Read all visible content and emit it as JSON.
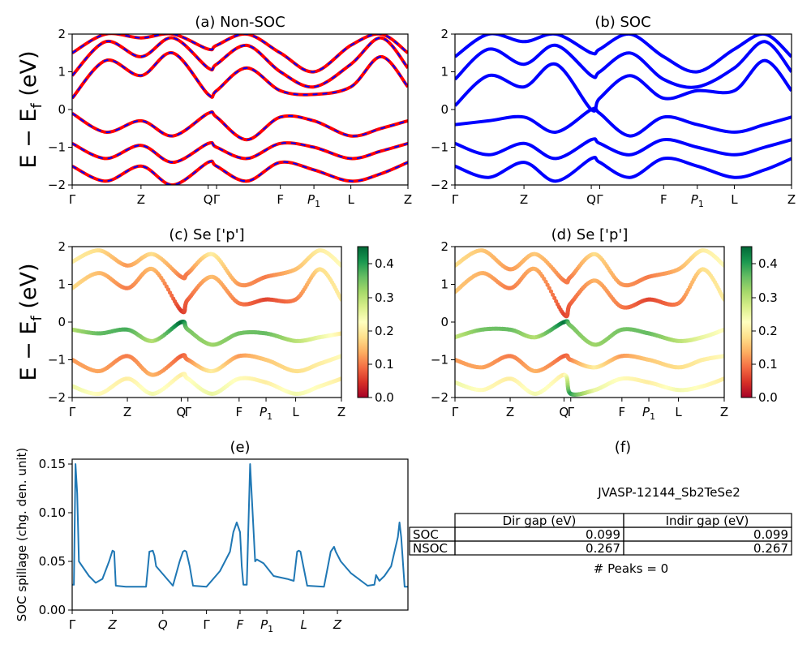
{
  "colors": {
    "nonsoc_line": "#ff0000",
    "soc_line": "#0000ff",
    "nonsoc_dash": "#0000ff",
    "spillage_line": "#1f77b4",
    "colormap": [
      "#a50026",
      "#d73027",
      "#f46d43",
      "#fdae61",
      "#fee08b",
      "#ffffbf",
      "#d9ef8b",
      "#a6d96a",
      "#66bd63",
      "#1a9850",
      "#006837"
    ]
  },
  "chart_data": [
    {
      "id": "a",
      "type": "line",
      "title": "(a) Non-SOC",
      "ylabel": "E − E_f (eV)",
      "ylim": [
        -2,
        2
      ],
      "yticks": [
        "2",
        "1",
        "0",
        "−1",
        "−2"
      ],
      "xticks": [
        "Γ",
        "Z",
        "Q",
        "Γ",
        "F",
        "P1",
        "L",
        "Z"
      ],
      "xtick_positions": [
        0,
        0.205,
        0.405,
        0.43,
        0.62,
        0.72,
        0.83,
        1.0
      ],
      "style": "red lines overlaid with blue dashes",
      "series": [
        {
          "x": [
            0,
            0.1,
            0.205,
            0.3,
            0.405,
            0.43,
            0.52,
            0.62,
            0.72,
            0.83,
            0.92,
            1.0
          ],
          "values": [
            0.3,
            1.3,
            0.9,
            1.5,
            0.4,
            0.5,
            1.1,
            0.5,
            0.4,
            0.6,
            1.4,
            0.6
          ]
        },
        {
          "x": [
            0,
            0.1,
            0.205,
            0.3,
            0.405,
            0.43,
            0.52,
            0.62,
            0.72,
            0.83,
            0.92,
            1.0
          ],
          "values": [
            0.9,
            1.8,
            1.4,
            1.9,
            1.1,
            1.2,
            1.7,
            1.0,
            0.6,
            1.2,
            1.9,
            1.1
          ]
        },
        {
          "x": [
            0,
            0.1,
            0.205,
            0.3,
            0.405,
            0.43,
            0.52,
            0.62,
            0.72,
            0.83,
            0.92,
            1.0
          ],
          "values": [
            1.5,
            2.0,
            1.9,
            2.0,
            1.6,
            1.7,
            2.0,
            1.5,
            1.0,
            1.7,
            2.0,
            1.5
          ]
        },
        {
          "x": [
            0,
            0.1,
            0.205,
            0.3,
            0.405,
            0.43,
            0.52,
            0.62,
            0.72,
            0.83,
            0.92,
            1.0
          ],
          "values": [
            -0.1,
            -0.6,
            -0.3,
            -0.7,
            -0.1,
            -0.2,
            -0.8,
            -0.2,
            -0.3,
            -0.7,
            -0.5,
            -0.3
          ]
        },
        {
          "x": [
            0,
            0.1,
            0.205,
            0.3,
            0.405,
            0.43,
            0.52,
            0.62,
            0.72,
            0.83,
            0.92,
            1.0
          ],
          "values": [
            -0.9,
            -1.3,
            -0.95,
            -1.4,
            -0.9,
            -1.0,
            -1.3,
            -0.9,
            -1.0,
            -1.3,
            -1.1,
            -0.9
          ]
        },
        {
          "x": [
            0,
            0.1,
            0.205,
            0.3,
            0.405,
            0.43,
            0.52,
            0.62,
            0.72,
            0.83,
            0.92,
            1.0
          ],
          "values": [
            -1.5,
            -1.9,
            -1.5,
            -2.0,
            -1.4,
            -1.5,
            -1.9,
            -1.4,
            -1.6,
            -1.9,
            -1.7,
            -1.4
          ]
        }
      ]
    },
    {
      "id": "b",
      "type": "line",
      "title": "(b) SOC",
      "ylim": [
        -2,
        2
      ],
      "yticks": [
        "2",
        "1",
        "0",
        "−1",
        "−2"
      ],
      "xticks": [
        "Γ",
        "Z",
        "Q",
        "Γ",
        "F",
        "P1",
        "L",
        "Z"
      ],
      "xtick_positions": [
        0,
        0.205,
        0.405,
        0.43,
        0.62,
        0.72,
        0.83,
        1.0
      ],
      "series": [
        {
          "x": [
            0,
            0.1,
            0.205,
            0.3,
            0.405,
            0.43,
            0.52,
            0.62,
            0.72,
            0.83,
            0.92,
            1.0
          ],
          "values": [
            0.1,
            0.9,
            0.6,
            1.2,
            0.0,
            0.3,
            0.9,
            0.3,
            0.5,
            0.5,
            1.3,
            0.5
          ]
        },
        {
          "x": [
            0,
            0.1,
            0.205,
            0.3,
            0.405,
            0.43,
            0.52,
            0.62,
            0.72,
            0.83,
            0.92,
            1.0
          ],
          "values": [
            0.8,
            1.6,
            1.2,
            1.7,
            0.9,
            1.0,
            1.5,
            0.8,
            0.6,
            1.1,
            1.8,
            1.0
          ]
        },
        {
          "x": [
            0,
            0.1,
            0.205,
            0.3,
            0.405,
            0.43,
            0.52,
            0.62,
            0.72,
            0.83,
            0.92,
            1.0
          ],
          "values": [
            1.4,
            2.0,
            1.8,
            2.0,
            1.5,
            1.6,
            2.0,
            1.4,
            1.0,
            1.6,
            2.0,
            1.4
          ]
        },
        {
          "x": [
            0,
            0.1,
            0.205,
            0.3,
            0.405,
            0.43,
            0.52,
            0.62,
            0.72,
            0.83,
            0.92,
            1.0
          ],
          "values": [
            -0.4,
            -0.3,
            -0.2,
            -0.6,
            0.0,
            -0.1,
            -0.7,
            -0.2,
            -0.4,
            -0.6,
            -0.4,
            -0.2
          ]
        },
        {
          "x": [
            0,
            0.1,
            0.205,
            0.3,
            0.405,
            0.43,
            0.52,
            0.62,
            0.72,
            0.83,
            0.92,
            1.0
          ],
          "values": [
            -0.9,
            -1.2,
            -0.9,
            -1.3,
            -0.8,
            -0.9,
            -1.2,
            -0.8,
            -1.0,
            -1.2,
            -1.0,
            -0.8
          ]
        },
        {
          "x": [
            0,
            0.1,
            0.205,
            0.3,
            0.405,
            0.43,
            0.52,
            0.62,
            0.72,
            0.83,
            0.92,
            1.0
          ],
          "values": [
            -1.5,
            -1.8,
            -1.4,
            -1.9,
            -1.3,
            -1.4,
            -1.8,
            -1.3,
            -1.5,
            -1.8,
            -1.6,
            -1.3
          ]
        }
      ]
    },
    {
      "id": "c",
      "type": "scatter",
      "title": "(c)  Se ['p']",
      "ylabel": "E − E_f (eV)",
      "ylim": [
        -2,
        2
      ],
      "yticks": [
        "2",
        "1",
        "0",
        "−1",
        "−2"
      ],
      "xticks": [
        "Γ",
        "Z",
        "Q",
        "Γ",
        "F",
        "P1",
        "L",
        "Z"
      ],
      "xtick_positions": [
        0,
        0.205,
        0.405,
        0.43,
        0.62,
        0.72,
        0.83,
        1.0
      ],
      "colorbar": {
        "min": 0.0,
        "max": 0.45,
        "ticks": [
          "0.4",
          "0.3",
          "0.2",
          "0.1",
          "0.0"
        ]
      },
      "series": [
        {
          "x": [
            0,
            0.1,
            0.205,
            0.3,
            0.405,
            0.43,
            0.52,
            0.62,
            0.72,
            0.83,
            0.92,
            1.0
          ],
          "values": [
            0.9,
            1.3,
            0.9,
            1.4,
            0.3,
            0.6,
            1.2,
            0.5,
            0.6,
            0.6,
            1.4,
            0.6
          ],
          "weights": [
            0.18,
            0.15,
            0.1,
            0.15,
            0.05,
            0.08,
            0.15,
            0.1,
            0.06,
            0.1,
            0.18,
            0.2
          ]
        },
        {
          "x": [
            0,
            0.1,
            0.205,
            0.3,
            0.405,
            0.43,
            0.52,
            0.62,
            0.72,
            0.83,
            0.92,
            1.0
          ],
          "values": [
            1.6,
            1.9,
            1.5,
            1.8,
            1.2,
            1.3,
            1.8,
            1.0,
            1.2,
            1.4,
            1.9,
            1.5
          ],
          "weights": [
            0.2,
            0.18,
            0.12,
            0.18,
            0.1,
            0.1,
            0.2,
            0.12,
            0.1,
            0.15,
            0.2,
            0.22
          ]
        },
        {
          "x": [
            0,
            0.1,
            0.205,
            0.3,
            0.405,
            0.43,
            0.52,
            0.62,
            0.72,
            0.83,
            0.92,
            1.0
          ],
          "values": [
            -0.2,
            -0.3,
            -0.2,
            -0.5,
            0.0,
            -0.2,
            -0.6,
            -0.3,
            -0.3,
            -0.5,
            -0.4,
            -0.3
          ],
          "weights": [
            0.3,
            0.36,
            0.38,
            0.3,
            0.45,
            0.35,
            0.32,
            0.35,
            0.36,
            0.3,
            0.25,
            0.2
          ]
        },
        {
          "x": [
            0,
            0.1,
            0.205,
            0.3,
            0.405,
            0.43,
            0.52,
            0.62,
            0.72,
            0.83,
            0.92,
            1.0
          ],
          "values": [
            -1.0,
            -1.3,
            -0.9,
            -1.4,
            -0.9,
            -1.0,
            -1.3,
            -0.9,
            -1.0,
            -1.3,
            -1.1,
            -0.9
          ],
          "weights": [
            0.12,
            0.13,
            0.1,
            0.14,
            0.08,
            0.1,
            0.2,
            0.12,
            0.16,
            0.18,
            0.2,
            0.22
          ]
        },
        {
          "x": [
            0,
            0.1,
            0.205,
            0.3,
            0.405,
            0.43,
            0.52,
            0.62,
            0.72,
            0.83,
            0.92,
            1.0
          ],
          "values": [
            -1.7,
            -1.9,
            -1.5,
            -1.9,
            -1.4,
            -1.5,
            -1.9,
            -1.5,
            -1.6,
            -1.9,
            -1.7,
            -1.5
          ],
          "weights": [
            0.25,
            0.22,
            0.2,
            0.24,
            0.2,
            0.22,
            0.25,
            0.22,
            0.2,
            0.24,
            0.22,
            0.2
          ]
        }
      ]
    },
    {
      "id": "d",
      "type": "scatter",
      "title": "(d) Se ['p']",
      "ylim": [
        -2,
        2
      ],
      "yticks": [
        "2",
        "1",
        "0",
        "−1",
        "−2"
      ],
      "xticks": [
        "Γ",
        "Z",
        "Q",
        "Γ",
        "F",
        "P1",
        "L",
        "Z"
      ],
      "xtick_positions": [
        0,
        0.205,
        0.405,
        0.43,
        0.62,
        0.72,
        0.83,
        1.0
      ],
      "colorbar": {
        "min": 0.0,
        "max": 0.45,
        "ticks": [
          "0.4",
          "0.3",
          "0.2",
          "0.1",
          "0.0"
        ]
      },
      "series": [
        {
          "x": [
            0,
            0.1,
            0.205,
            0.3,
            0.405,
            0.43,
            0.52,
            0.62,
            0.72,
            0.83,
            0.92,
            1.0
          ],
          "values": [
            0.8,
            1.3,
            0.9,
            1.4,
            0.2,
            0.5,
            1.1,
            0.4,
            0.6,
            0.5,
            1.4,
            0.6
          ],
          "weights": [
            0.16,
            0.14,
            0.1,
            0.14,
            0.06,
            0.08,
            0.14,
            0.1,
            0.06,
            0.1,
            0.18,
            0.2
          ]
        },
        {
          "x": [
            0,
            0.1,
            0.205,
            0.3,
            0.405,
            0.43,
            0.52,
            0.62,
            0.72,
            0.83,
            0.92,
            1.0
          ],
          "values": [
            1.5,
            1.9,
            1.4,
            1.8,
            1.1,
            1.2,
            1.8,
            1.0,
            1.2,
            1.4,
            1.9,
            1.5
          ],
          "weights": [
            0.18,
            0.16,
            0.12,
            0.16,
            0.1,
            0.1,
            0.18,
            0.12,
            0.1,
            0.14,
            0.2,
            0.22
          ]
        },
        {
          "x": [
            0,
            0.1,
            0.205,
            0.3,
            0.405,
            0.43,
            0.52,
            0.62,
            0.72,
            0.83,
            0.92,
            1.0
          ],
          "values": [
            -0.4,
            -0.2,
            -0.2,
            -0.4,
            0.0,
            -0.1,
            -0.6,
            -0.2,
            -0.3,
            -0.5,
            -0.4,
            -0.2
          ],
          "weights": [
            0.28,
            0.35,
            0.36,
            0.3,
            0.44,
            0.35,
            0.32,
            0.35,
            0.36,
            0.3,
            0.25,
            0.22
          ]
        },
        {
          "x": [
            0,
            0.1,
            0.205,
            0.3,
            0.405,
            0.43,
            0.52,
            0.62,
            0.72,
            0.83,
            0.92,
            1.0
          ],
          "values": [
            -1.0,
            -1.2,
            -0.9,
            -1.3,
            -0.9,
            -1.0,
            -1.2,
            -0.9,
            -1.0,
            -1.2,
            -1.0,
            -0.9
          ],
          "weights": [
            0.12,
            0.13,
            0.1,
            0.14,
            0.08,
            0.1,
            0.2,
            0.12,
            0.16,
            0.18,
            0.2,
            0.22
          ]
        },
        {
          "x": [
            0,
            0.1,
            0.205,
            0.3,
            0.405,
            0.43,
            0.52,
            0.62,
            0.72,
            0.83,
            0.92,
            1.0
          ],
          "values": [
            -1.6,
            -1.8,
            -1.5,
            -1.9,
            -1.4,
            -1.9,
            -1.8,
            -1.5,
            -1.6,
            -1.8,
            -1.7,
            -1.5
          ],
          "weights": [
            0.25,
            0.22,
            0.2,
            0.24,
            0.2,
            0.4,
            0.25,
            0.22,
            0.2,
            0.24,
            0.22,
            0.2
          ]
        }
      ]
    },
    {
      "id": "e",
      "type": "line",
      "title": "(e)",
      "ylabel": "SOC spillage (chg. den. unit)",
      "ylim": [
        0.0,
        0.155
      ],
      "yticks": [
        "0.15",
        "0.10",
        "0.05",
        "0.00"
      ],
      "xticks": [
        "Γ",
        "Z",
        "Q",
        "Γ",
        "F",
        "P1",
        "L",
        "Z"
      ],
      "xtick_positions": [
        0,
        0.12,
        0.27,
        0.4,
        0.5,
        0.58,
        0.69,
        0.79
      ],
      "x": [
        0,
        0.005,
        0.01,
        0.015,
        0.02,
        0.03,
        0.05,
        0.07,
        0.09,
        0.11,
        0.12,
        0.125,
        0.13,
        0.16,
        0.2,
        0.22,
        0.23,
        0.24,
        0.245,
        0.25,
        0.3,
        0.32,
        0.33,
        0.335,
        0.34,
        0.35,
        0.36,
        0.4,
        0.44,
        0.47,
        0.48,
        0.49,
        0.5,
        0.505,
        0.51,
        0.52,
        0.53,
        0.545,
        0.55,
        0.57,
        0.6,
        0.64,
        0.66,
        0.67,
        0.675,
        0.68,
        0.7,
        0.75,
        0.77,
        0.78,
        0.785,
        0.8,
        0.83,
        0.88,
        0.9,
        0.905,
        0.91,
        0.915,
        0.93,
        0.95,
        0.97,
        0.975,
        0.98,
        0.99,
        1.0
      ],
      "values": [
        0.026,
        0.026,
        0.15,
        0.12,
        0.05,
        0.045,
        0.035,
        0.028,
        0.032,
        0.05,
        0.061,
        0.06,
        0.025,
        0.024,
        0.024,
        0.024,
        0.06,
        0.061,
        0.056,
        0.045,
        0.025,
        0.05,
        0.06,
        0.061,
        0.06,
        0.045,
        0.025,
        0.024,
        0.04,
        0.06,
        0.08,
        0.09,
        0.08,
        0.045,
        0.026,
        0.026,
        0.15,
        0.05,
        0.052,
        0.048,
        0.035,
        0.032,
        0.03,
        0.06,
        0.061,
        0.06,
        0.025,
        0.024,
        0.06,
        0.065,
        0.06,
        0.05,
        0.038,
        0.025,
        0.026,
        0.036,
        0.033,
        0.03,
        0.035,
        0.045,
        0.075,
        0.09,
        0.075,
        0.024,
        0.024
      ]
    }
  ],
  "panel_f": {
    "title": "(f)",
    "material": "JVASP-12144_Sb2TeSe2",
    "headers": [
      "Dir gap (eV)",
      "Indir gap (eV)"
    ],
    "rows": [
      {
        "label": "SOC",
        "dir": "0.099",
        "indir": "0.099"
      },
      {
        "label": "NSOC",
        "dir": "0.267",
        "indir": "0.267"
      }
    ],
    "peaks_text": "# Peaks = 0"
  }
}
